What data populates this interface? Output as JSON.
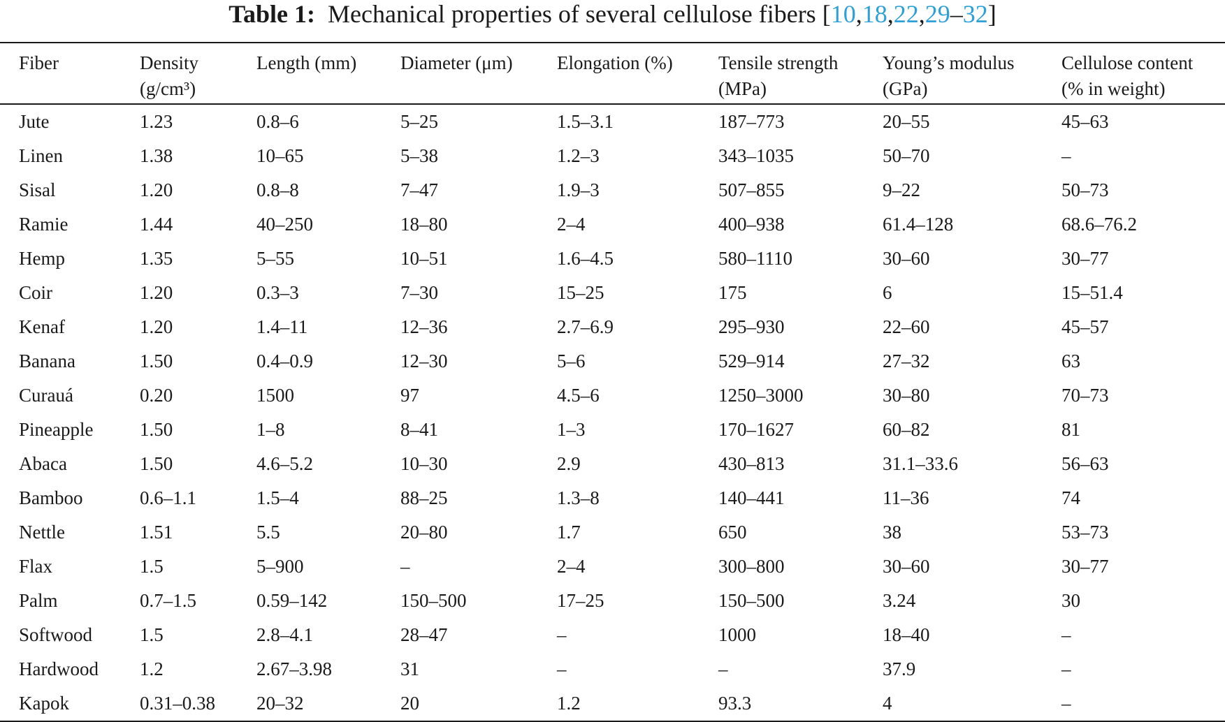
{
  "caption": {
    "label": "Table 1:",
    "text": "Mechanical properties of several cellulose fibers",
    "open_bracket": "[",
    "close_bracket": "]",
    "refs": [
      "10",
      "18",
      "22",
      "29",
      "32"
    ],
    "comma": ",",
    "dash": "–",
    "ref_color": "#2e9fd8"
  },
  "table": {
    "headers": [
      {
        "line1": "Fiber",
        "line2": ""
      },
      {
        "line1": "Density",
        "line2": "(g/cm³)"
      },
      {
        "line1": "Length (mm)",
        "line2": ""
      },
      {
        "line1": "Diameter (μm)",
        "line2": ""
      },
      {
        "line1": "Elongation (%)",
        "line2": ""
      },
      {
        "line1": "Tensile strength",
        "line2": "(MPa)"
      },
      {
        "line1": "Young’s modulus",
        "line2": "(GPa)"
      },
      {
        "line1": "Cellulose content",
        "line2": "(% in weight)"
      }
    ],
    "rows": [
      [
        "Jute",
        "1.23",
        "0.8–6",
        "5–25",
        "1.5–3.1",
        "187–773",
        "20–55",
        "45–63"
      ],
      [
        "Linen",
        "1.38",
        "10–65",
        "5–38",
        "1.2–3",
        "343–1035",
        "50–70",
        "–"
      ],
      [
        "Sisal",
        "1.20",
        "0.8–8",
        "7–47",
        "1.9–3",
        "507–855",
        "9–22",
        "50–73"
      ],
      [
        "Ramie",
        "1.44",
        "40–250",
        "18–80",
        "2–4",
        "400–938",
        "61.4–128",
        "68.6–76.2"
      ],
      [
        "Hemp",
        "1.35",
        "5–55",
        "10–51",
        "1.6–4.5",
        "580–1110",
        "30–60",
        "30–77"
      ],
      [
        "Coir",
        "1.20",
        "0.3–3",
        "7–30",
        "15–25",
        "175",
        "6",
        "15–51.4"
      ],
      [
        "Kenaf",
        "1.20",
        "1.4–11",
        "12–36",
        "2.7–6.9",
        "295–930",
        "22–60",
        "45–57"
      ],
      [
        "Banana",
        "1.50",
        "0.4–0.9",
        "12–30",
        "5–6",
        "529–914",
        "27–32",
        "63"
      ],
      [
        "Curauá",
        "0.20",
        "1500",
        "97",
        "4.5–6",
        "1250–3000",
        "30–80",
        "70–73"
      ],
      [
        "Pineapple",
        "1.50",
        "1–8",
        "8–41",
        "1–3",
        "170–1627",
        "60–82",
        "81"
      ],
      [
        "Abaca",
        "1.50",
        "4.6–5.2",
        "10–30",
        "2.9",
        "430–813",
        "31.1–33.6",
        "56–63"
      ],
      [
        "Bamboo",
        "0.6–1.1",
        "1.5–4",
        "88–25",
        "1.3–8",
        "140–441",
        "11–36",
        "74"
      ],
      [
        "Nettle",
        "1.51",
        "5.5",
        "20–80",
        "1.7",
        "650",
        "38",
        "53–73"
      ],
      [
        "Flax",
        "1.5",
        "5–900",
        "–",
        "2–4",
        "300–800",
        "30–60",
        "30–77"
      ],
      [
        "Palm",
        "0.7–1.5",
        "0.59–142",
        "150–500",
        "17–25",
        "150–500",
        "3.24",
        "30"
      ],
      [
        "Softwood",
        "1.5",
        "2.8–4.1",
        "28–47",
        "–",
        "1000",
        "18–40",
        "–"
      ],
      [
        "Hardwood",
        "1.2",
        "2.67–3.98",
        "31",
        "–",
        "–",
        "37.9",
        "–"
      ],
      [
        "Kapok",
        "0.31–0.38",
        "20–32",
        "20",
        "1.2",
        "93.3",
        "4",
        "–"
      ]
    ]
  }
}
